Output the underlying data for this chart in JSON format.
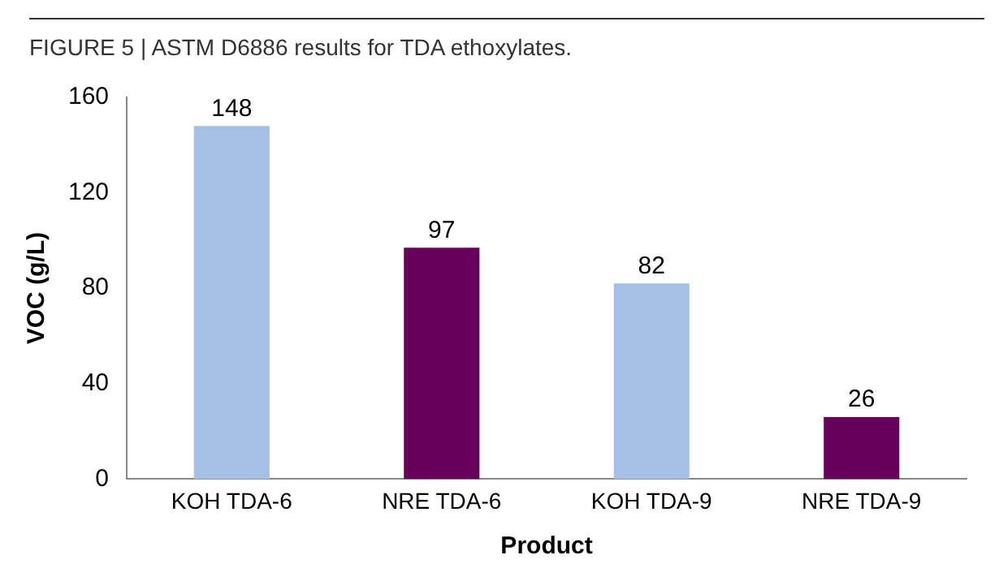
{
  "chart_data": {
    "type": "bar",
    "title": "FIGURE 5 | ASTM D6886 results for TDA ethoxylates.",
    "xlabel": "Product",
    "ylabel": "VOC (g/L)",
    "categories": [
      "KOH TDA-6",
      "NRE TDA-6",
      "KOH TDA-9",
      "NRE TDA-9"
    ],
    "values": [
      148,
      97,
      82,
      26
    ],
    "colors": [
      "#a4c0e4",
      "#66005a",
      "#a4c0e4",
      "#66005a"
    ],
    "ylim": [
      0,
      160
    ],
    "yticks": [
      0,
      40,
      80,
      120,
      160
    ],
    "grid": false,
    "legend": false,
    "data_labels": true
  }
}
